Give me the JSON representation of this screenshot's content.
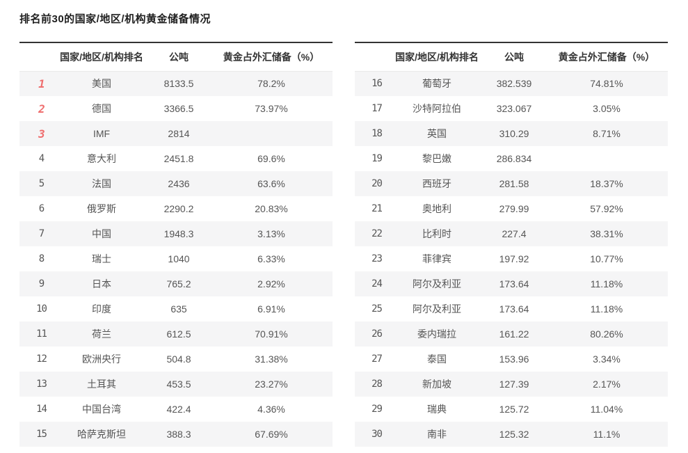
{
  "page_title": "排名前30的国家/地区/机构黄金储备情况",
  "colors": {
    "rank_top3": "#ef6e6e",
    "rank_default": "#7d7d7d",
    "row_stripe": "#f5f5f6",
    "table_top_border": "#333333",
    "header_text": "#333333",
    "body_text": "#555555"
  },
  "chart_data": [
    {
      "type": "table",
      "title": "排名前30的国家/地区/机构黄金储备情况（左表：1-15名）",
      "headers": {
        "rank": "",
        "name": "国家/地区/机构排名",
        "tonnes": "公吨",
        "pct": "黄金占外汇储备（%）"
      },
      "rows": [
        {
          "rank": "1",
          "name": "美国",
          "tonnes": "8133.5",
          "pct": "78.2%"
        },
        {
          "rank": "2",
          "name": "德国",
          "tonnes": "3366.5",
          "pct": "73.97%"
        },
        {
          "rank": "3",
          "name": "IMF",
          "tonnes": "2814",
          "pct": ""
        },
        {
          "rank": "4",
          "name": "意大利",
          "tonnes": "2451.8",
          "pct": "69.6%"
        },
        {
          "rank": "5",
          "name": "法国",
          "tonnes": "2436",
          "pct": "63.6%"
        },
        {
          "rank": "6",
          "name": "俄罗斯",
          "tonnes": "2290.2",
          "pct": "20.83%"
        },
        {
          "rank": "7",
          "name": "中国",
          "tonnes": "1948.3",
          "pct": "3.13%"
        },
        {
          "rank": "8",
          "name": "瑞士",
          "tonnes": "1040",
          "pct": "6.33%"
        },
        {
          "rank": "9",
          "name": "日本",
          "tonnes": "765.2",
          "pct": "2.92%"
        },
        {
          "rank": "10",
          "name": "印度",
          "tonnes": "635",
          "pct": "6.91%"
        },
        {
          "rank": "11",
          "name": "荷兰",
          "tonnes": "612.5",
          "pct": "70.91%"
        },
        {
          "rank": "12",
          "name": "欧洲央行",
          "tonnes": "504.8",
          "pct": "31.38%"
        },
        {
          "rank": "13",
          "name": "土耳其",
          "tonnes": "453.5",
          "pct": "23.27%"
        },
        {
          "rank": "14",
          "name": "中国台湾",
          "tonnes": "422.4",
          "pct": "4.36%"
        },
        {
          "rank": "15",
          "name": "哈萨克斯坦",
          "tonnes": "388.3",
          "pct": "67.69%"
        }
      ]
    },
    {
      "type": "table",
      "title": "排名前30的国家/地区/机构黄金储备情况（右表：16-30名）",
      "headers": {
        "rank": "",
        "name": "国家/地区/机构排名",
        "tonnes": "公吨",
        "pct": "黄金占外汇储备（%）"
      },
      "rows": [
        {
          "rank": "16",
          "name": "葡萄牙",
          "tonnes": "382.539",
          "pct": "74.81%"
        },
        {
          "rank": "17",
          "name": "沙特阿拉伯",
          "tonnes": "323.067",
          "pct": "3.05%"
        },
        {
          "rank": "18",
          "name": "英国",
          "tonnes": "310.29",
          "pct": "8.71%"
        },
        {
          "rank": "19",
          "name": "黎巴嫩",
          "tonnes": "286.834",
          "pct": ""
        },
        {
          "rank": "20",
          "name": "西班牙",
          "tonnes": "281.58",
          "pct": "18.37%"
        },
        {
          "rank": "21",
          "name": "奥地利",
          "tonnes": "279.99",
          "pct": "57.92%"
        },
        {
          "rank": "22",
          "name": "比利时",
          "tonnes": "227.4",
          "pct": "38.31%"
        },
        {
          "rank": "23",
          "name": "菲律宾",
          "tonnes": "197.92",
          "pct": "10.77%"
        },
        {
          "rank": "24",
          "name": "阿尔及利亚",
          "tonnes": "173.64",
          "pct": "11.18%"
        },
        {
          "rank": "25",
          "name": "阿尔及利亚",
          "tonnes": "173.64",
          "pct": "11.18%"
        },
        {
          "rank": "26",
          "name": "委内瑞拉",
          "tonnes": "161.22",
          "pct": "80.26%"
        },
        {
          "rank": "27",
          "name": "泰国",
          "tonnes": "153.96",
          "pct": "3.34%"
        },
        {
          "rank": "28",
          "name": "新加坡",
          "tonnes": "127.39",
          "pct": "2.17%"
        },
        {
          "rank": "29",
          "name": "瑞典",
          "tonnes": "125.72",
          "pct": "11.04%"
        },
        {
          "rank": "30",
          "name": "南非",
          "tonnes": "125.32",
          "pct": "11.1%"
        }
      ]
    }
  ]
}
